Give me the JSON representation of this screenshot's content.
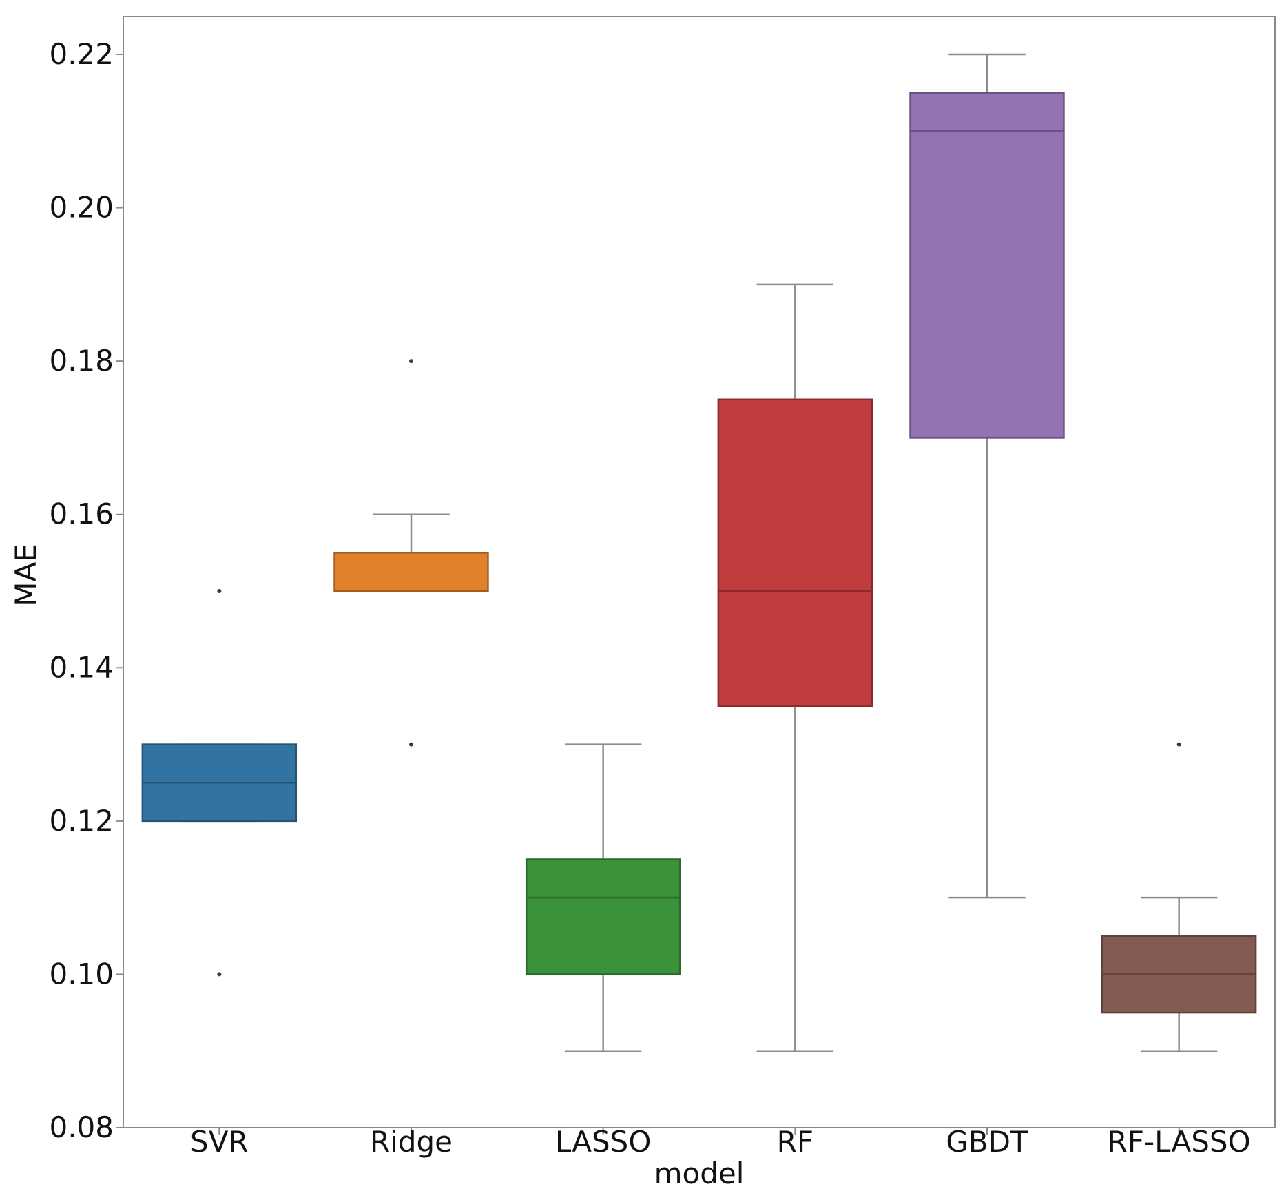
{
  "chart_data": {
    "type": "box",
    "title": "",
    "xlabel": "model",
    "ylabel": "MAE",
    "ylim": [
      0.08,
      0.225
    ],
    "yticks": [
      "0.08",
      "0.10",
      "0.12",
      "0.14",
      "0.16",
      "0.18",
      "0.20",
      "0.22"
    ],
    "grid": false,
    "categories": [
      "SVR",
      "Ridge",
      "LASSO",
      "RF",
      "GBDT",
      "RF-LASSO"
    ],
    "boxes": [
      {
        "name": "SVR",
        "color": "#3274a1",
        "whisker_low": 0.12,
        "q1": 0.12,
        "median": 0.125,
        "q3": 0.13,
        "whisker_high": 0.13,
        "outliers": [
          0.15,
          0.1
        ]
      },
      {
        "name": "Ridge",
        "color": "#e1812c",
        "whisker_low": 0.15,
        "q1": 0.15,
        "median": 0.15,
        "q3": 0.155,
        "whisker_high": 0.16,
        "outliers": [
          0.18,
          0.13
        ]
      },
      {
        "name": "LASSO",
        "color": "#3a923a",
        "whisker_low": 0.09,
        "q1": 0.1,
        "median": 0.11,
        "q3": 0.115,
        "whisker_high": 0.13,
        "outliers": []
      },
      {
        "name": "RF",
        "color": "#c03d3e",
        "whisker_low": 0.09,
        "q1": 0.135,
        "median": 0.15,
        "q3": 0.175,
        "whisker_high": 0.19,
        "outliers": []
      },
      {
        "name": "GBDT",
        "color": "#9372b2",
        "whisker_low": 0.11,
        "q1": 0.17,
        "median": 0.21,
        "q3": 0.215,
        "whisker_high": 0.22,
        "outliers": []
      },
      {
        "name": "RF-LASSO",
        "color": "#845b53",
        "whisker_low": 0.09,
        "q1": 0.095,
        "median": 0.1,
        "q3": 0.105,
        "whisker_high": 0.11,
        "outliers": [
          0.13
        ]
      }
    ]
  }
}
